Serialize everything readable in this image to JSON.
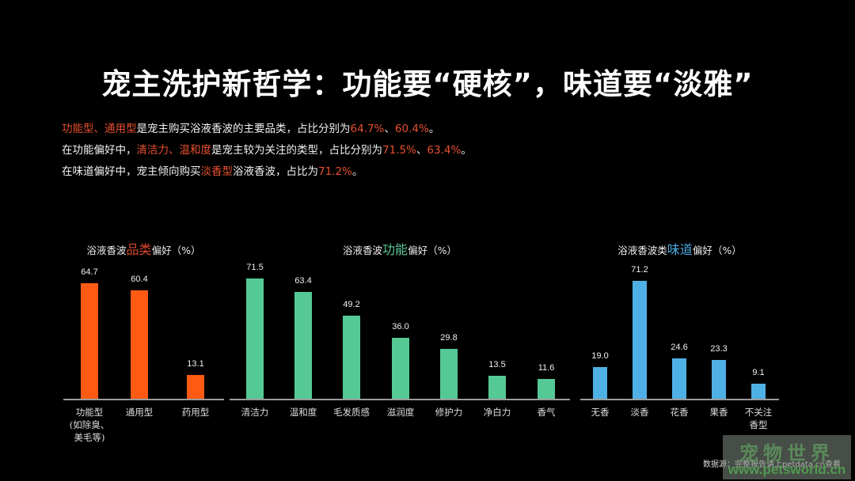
{
  "header": {
    "title": "宠主洗护新哲学：功能要“硬核”，味道要“淡雅”"
  },
  "summary": {
    "line1": {
      "hl1": "功能型、通用型",
      "t1": "是宠主购买浴液香波的主要品类，占比分别为",
      "hl2": "64.7%",
      "t2": "、",
      "hl3": "60.4%",
      "t3": "。"
    },
    "line2": {
      "t0": "在功能偏好中，",
      "hl1": "清洁力、温和度",
      "t1": "是宠主较为关注的类型，占比分别为",
      "hl2": "71.5%",
      "t2": "、",
      "hl3": "63.4%",
      "t3": "。"
    },
    "line3": {
      "t0": "在味道偏好中，宠主倾向购买",
      "hl1": "淡香型",
      "t1": "浴液香波，占比为",
      "hl2": "71.2%",
      "t2": "。"
    },
    "highlight_color": "#e8502f"
  },
  "source": "数据源：完整报告请上petdata.cn查看",
  "watermark": {
    "top": "宠物世界",
    "bottom": "www.petsworld.cn"
  },
  "chart_data": [
    {
      "type": "bar",
      "title": "浴液香波品类偏好（%）",
      "title_parts": {
        "pre": "浴液香波",
        "accent": "品类",
        "post": "偏好（%）"
      },
      "accent_color": "#d9472b",
      "bar_color": "#ff5a14",
      "categories": [
        "功能型(如除臭、美毛等)",
        "通用型",
        "药用型"
      ],
      "category_labels": [
        "功能型\n(如除臭、\n美毛等)",
        "通用型",
        "药用型"
      ],
      "values": [
        64.7,
        60.4,
        13.1
      ],
      "value_labels": [
        "64.7",
        "60.4",
        "13.1"
      ],
      "xlabel": "",
      "ylabel": "%",
      "ylim": [
        0,
        70
      ],
      "grid": false
    },
    {
      "type": "bar",
      "title": "浴液香波功能偏好（%）",
      "title_parts": {
        "pre": "浴液香波",
        "accent": "功能",
        "post": "偏好（%）"
      },
      "accent_color": "#5ec99a",
      "bar_color": "#55c995",
      "categories": [
        "清洁力",
        "温和度",
        "毛发质感",
        "滋润度",
        "修护力",
        "净白力",
        "香气"
      ],
      "category_labels": [
        "清洁力",
        "温和度",
        "毛发质感",
        "滋润度",
        "修护力",
        "净白力",
        "香气"
      ],
      "values": [
        71.5,
        63.4,
        49.2,
        36.0,
        29.8,
        13.5,
        11.6
      ],
      "value_labels": [
        "71.5",
        "63.4",
        "49.2",
        "36.0",
        "29.8",
        "13.5",
        "11.6"
      ],
      "xlabel": "",
      "ylabel": "%",
      "ylim": [
        0,
        75
      ],
      "grid": false
    },
    {
      "type": "bar",
      "title": "浴液香波类味道偏好（%）",
      "title_parts": {
        "pre": "浴液香波类",
        "accent": "味道",
        "post": "偏好（%）"
      },
      "accent_color": "#4aa8e0",
      "bar_color": "#4fb0e6",
      "categories": [
        "无香",
        "淡香",
        "花香",
        "果香",
        "不关注香型"
      ],
      "category_labels": [
        "无香",
        "淡香",
        "花香",
        "果香",
        "不关注\n香型"
      ],
      "values": [
        19.0,
        71.2,
        24.6,
        23.3,
        9.1
      ],
      "value_labels": [
        "19.0",
        "71.2",
        "24.6",
        "23.3",
        "9.1"
      ],
      "xlabel": "",
      "ylabel": "%",
      "ylim": [
        0,
        75
      ],
      "grid": false
    }
  ]
}
